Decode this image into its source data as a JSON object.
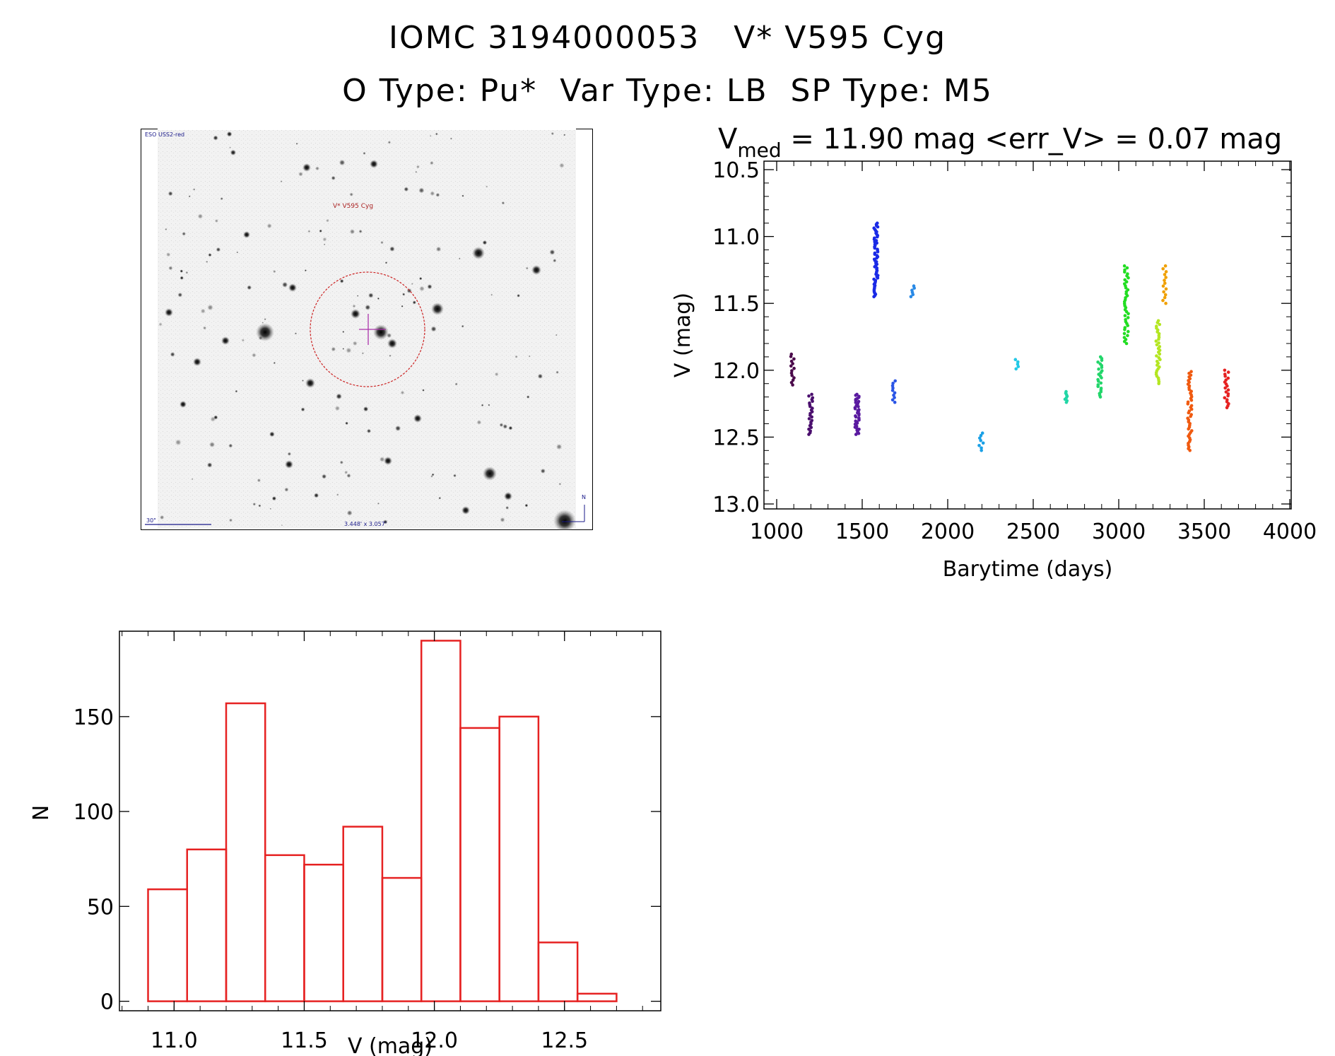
{
  "header": {
    "title_line1": "IOMC 3194000053   V* V595 Cyg",
    "title_line2": "O Type: Pu*  Var Type: LB  SP Type: M5"
  },
  "finder_chart": {
    "survey_label": "ESO USS2-red",
    "target_label": "V* V595 Cyg",
    "scale_label": "30\"",
    "fov_label": "3.448' x 3.057'",
    "north_label": "N",
    "circle_color": "#cc2222",
    "crosshair_color": "#aa33aa"
  },
  "chart_data": [
    {
      "id": "light_curve",
      "type": "scatter",
      "title_main": "V",
      "title_sub": "med",
      "title_rest": " = 11.90 mag <err_V> = 0.07 mag",
      "xlabel": "Barytime (days)",
      "ylabel": "V (mag)",
      "xlim": [
        1000,
        4000
      ],
      "ylim": [
        13.0,
        10.5
      ],
      "xticks": [
        1000,
        1500,
        2000,
        2500,
        3000,
        3500,
        4000
      ],
      "yticks": [
        10.5,
        11.0,
        11.5,
        12.0,
        12.5,
        13.0
      ],
      "xtick_labels": [
        "1000",
        "1500",
        "2000",
        "2500",
        "3000",
        "3500",
        "4000"
      ],
      "ytick_labels": [
        "10.5",
        "11.0",
        "11.5",
        "12.0",
        "12.5",
        "13.0"
      ],
      "groups": [
        {
          "x": 1090,
          "ymin": 11.88,
          "ymax": 12.11,
          "n": 14,
          "color": "#4b0a4b"
        },
        {
          "x": 1200,
          "ymin": 12.18,
          "ymax": 12.48,
          "n": 24,
          "color": "#4b0f6e"
        },
        {
          "x": 1470,
          "ymin": 12.18,
          "ymax": 12.48,
          "n": 40,
          "color": "#5a1aa0"
        },
        {
          "x": 1580,
          "ymin": 10.9,
          "ymax": 11.45,
          "n": 60,
          "color": "#1a2ae6"
        },
        {
          "x": 1690,
          "ymin": 12.08,
          "ymax": 12.24,
          "n": 10,
          "color": "#2a55e6"
        },
        {
          "x": 1795,
          "ymin": 11.37,
          "ymax": 11.45,
          "n": 6,
          "color": "#2a8ae6"
        },
        {
          "x": 2195,
          "ymin": 12.47,
          "ymax": 12.6,
          "n": 8,
          "color": "#1aa0e6"
        },
        {
          "x": 2405,
          "ymin": 11.92,
          "ymax": 11.99,
          "n": 5,
          "color": "#22c8e6"
        },
        {
          "x": 2690,
          "ymin": 12.16,
          "ymax": 12.24,
          "n": 8,
          "color": "#22d6a6"
        },
        {
          "x": 2890,
          "ymin": 11.9,
          "ymax": 12.2,
          "n": 24,
          "color": "#22d66a"
        },
        {
          "x": 3045,
          "ymin": 11.22,
          "ymax": 11.8,
          "n": 40,
          "color": "#22dd22"
        },
        {
          "x": 3230,
          "ymin": 11.63,
          "ymax": 12.1,
          "n": 35,
          "color": "#b4e622"
        },
        {
          "x": 3270,
          "ymin": 11.22,
          "ymax": 11.5,
          "n": 14,
          "color": "#f0a000"
        },
        {
          "x": 3415,
          "ymin": 12.01,
          "ymax": 12.6,
          "n": 45,
          "color": "#f05a10"
        },
        {
          "x": 3630,
          "ymin": 12.0,
          "ymax": 12.28,
          "n": 20,
          "color": "#e62222"
        }
      ]
    },
    {
      "id": "histogram",
      "type": "bar",
      "xlabel": "V (mag)",
      "ylabel": "N",
      "xlim": [
        10.79,
        12.87
      ],
      "ylim": [
        -5,
        195
      ],
      "bin_width": 0.15,
      "bin_starts": [
        10.9,
        11.05,
        11.2,
        11.35,
        11.5,
        11.65,
        11.8,
        11.95,
        12.1,
        12.25,
        12.4,
        12.55
      ],
      "values": [
        59,
        80,
        157,
        77,
        72,
        92,
        65,
        190,
        144,
        150,
        31,
        4
      ],
      "xticks": [
        11.0,
        11.5,
        12.0,
        12.5
      ],
      "yticks": [
        0,
        50,
        100,
        150
      ],
      "xtick_labels": [
        "11.0",
        "11.5",
        "12.0",
        "12.5"
      ],
      "ytick_labels": [
        "0",
        "50",
        "100",
        "150"
      ],
      "bar_color": "#e62222"
    }
  ]
}
